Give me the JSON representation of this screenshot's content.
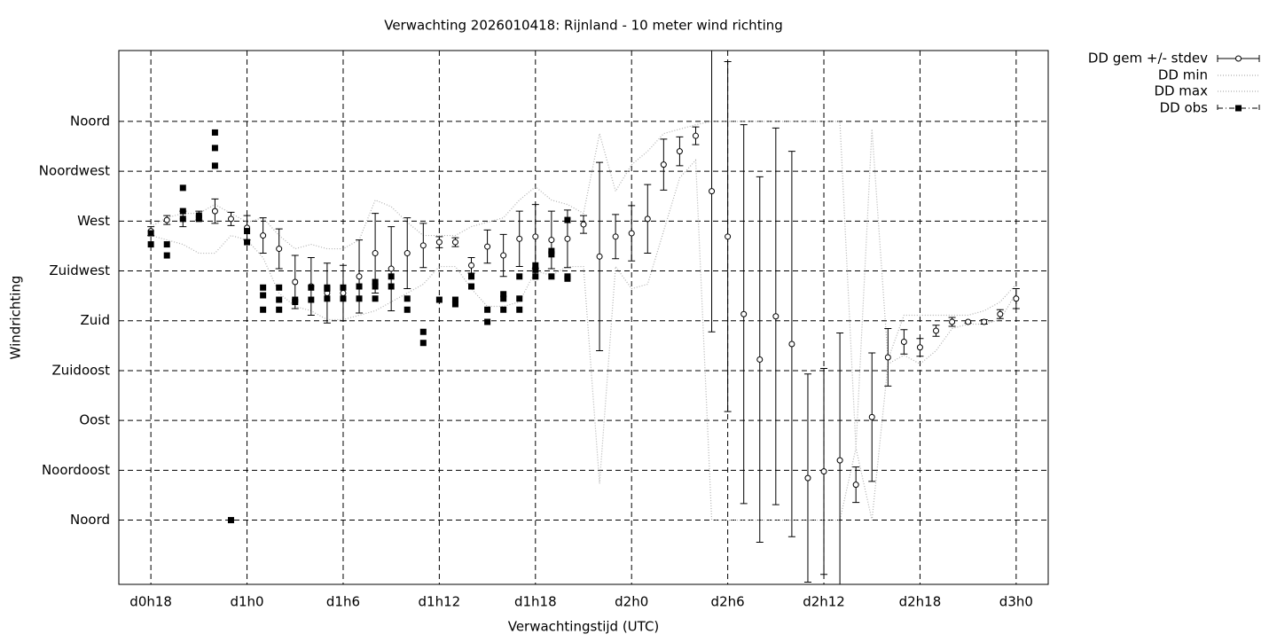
{
  "chart_data": {
    "type": "errorbar",
    "title": "Verwachting 2026010418: Rijnland - 10 meter wind richting",
    "xlabel": "Verwachtingstijd (UTC)",
    "ylabel": "Windrichting",
    "xlim": [
      16,
      74
    ],
    "xticks": [
      {
        "value": 18,
        "label": "d0h18"
      },
      {
        "value": 24,
        "label": "d1h0"
      },
      {
        "value": 30,
        "label": "d1h6"
      },
      {
        "value": 36,
        "label": "d1h12"
      },
      {
        "value": 42,
        "label": "d1h18"
      },
      {
        "value": 48,
        "label": "d2h0"
      },
      {
        "value": 54,
        "label": "d2h6"
      },
      {
        "value": 60,
        "label": "d2h12"
      },
      {
        "value": 66,
        "label": "d2h18"
      },
      {
        "value": 72,
        "label": "d3h0"
      }
    ],
    "ylim": [
      -58,
      424
    ],
    "yticks": [
      {
        "value": 0,
        "label": "Noord"
      },
      {
        "value": 45,
        "label": "Noordoost"
      },
      {
        "value": 90,
        "label": "Oost"
      },
      {
        "value": 135,
        "label": "Zuidoost"
      },
      {
        "value": 180,
        "label": "Zuid"
      },
      {
        "value": 225,
        "label": "Zuidwest"
      },
      {
        "value": 270,
        "label": "West"
      },
      {
        "value": 315,
        "label": "Noordwest"
      },
      {
        "value": 360,
        "label": "Noord"
      }
    ],
    "grid": true,
    "x": [
      18,
      19,
      20,
      21,
      22,
      23,
      24,
      25,
      26,
      27,
      28,
      29,
      30,
      31,
      32,
      33,
      34,
      35,
      36,
      37,
      38,
      39,
      40,
      41,
      42,
      43,
      44,
      45,
      46,
      47,
      48,
      49,
      50,
      51,
      52,
      53,
      54,
      55,
      56,
      57,
      58,
      59,
      60,
      61,
      62,
      63,
      64,
      65,
      66,
      67,
      68,
      69,
      70,
      71,
      72
    ],
    "series": [
      {
        "name": "DD gem +/- stdev",
        "color": "#000000",
        "values": [
          261,
          271,
          272,
          275,
          279,
          272,
          264,
          257,
          245,
          215,
          211,
          205,
          205,
          220,
          241,
          227,
          241,
          248,
          251,
          251,
          230,
          247,
          239,
          254,
          256,
          253,
          254,
          267,
          238,
          256,
          259,
          272,
          321,
          333,
          347,
          297,
          256,
          186,
          145,
          184,
          159,
          38,
          44,
          54,
          32,
          93,
          147,
          161,
          156,
          171,
          179,
          179,
          179,
          186,
          200
        ],
        "errors": [
          4,
          4,
          7,
          4,
          11,
          6,
          11,
          16,
          18,
          24,
          26,
          27,
          25,
          33,
          36,
          38,
          32,
          20,
          5,
          4,
          7,
          15,
          19,
          25,
          29,
          26,
          26,
          8,
          85,
          20,
          25,
          31,
          23,
          13,
          8,
          127,
          158,
          171,
          165,
          170,
          174,
          94,
          93,
          115,
          16,
          58,
          26,
          11,
          8,
          5,
          4,
          1,
          2,
          4,
          9
        ]
      },
      {
        "name": "DD min",
        "color": "#b0b0b0",
        "values": [
          257,
          253,
          249,
          241,
          241,
          257,
          253,
          237,
          205,
          193,
          189,
          181,
          181,
          185,
          189,
          197,
          205,
          213,
          229,
          229,
          209,
          193,
          193,
          197,
          225,
          221,
          229,
          229,
          33,
          229,
          209,
          213,
          261,
          309,
          325,
          0,
          0,
          0,
          0,
          0,
          0,
          0,
          0,
          0,
          65,
          0,
          141,
          149,
          141,
          153,
          173,
          177,
          177,
          181,
          205
        ]
      },
      {
        "name": "DD max",
        "color": "#b0b0b0",
        "values": [
          265,
          273,
          277,
          277,
          285,
          277,
          269,
          273,
          257,
          245,
          249,
          245,
          245,
          253,
          289,
          283,
          269,
          257,
          257,
          257,
          265,
          269,
          273,
          289,
          301,
          289,
          285,
          277,
          349,
          297,
          321,
          333,
          349,
          353,
          357,
          360,
          360,
          360,
          360,
          360,
          360,
          360,
          360,
          360,
          65,
          353,
          145,
          185,
          185,
          185,
          185,
          185,
          189,
          197,
          213
        ]
      },
      {
        "name": "DD obs",
        "color": "#000000",
        "x": [
          18,
          18,
          19,
          19,
          20,
          20,
          20,
          21,
          21,
          22,
          22,
          22,
          23,
          24,
          24,
          25,
          25,
          25,
          26,
          26,
          26,
          27,
          27,
          28,
          28,
          29,
          29,
          29,
          30,
          30,
          31,
          31,
          32,
          32,
          32,
          33,
          33,
          34,
          34,
          35,
          35,
          36,
          37,
          37,
          38,
          38,
          39,
          39,
          40,
          40,
          40,
          41,
          41,
          41,
          42,
          42,
          42,
          43,
          43,
          43,
          44,
          44,
          44
        ],
        "values": [
          259,
          249,
          249,
          239,
          300,
          279,
          272,
          275,
          272,
          350,
          336,
          320,
          0,
          261,
          251,
          210,
          203,
          190,
          210,
          199,
          190,
          199,
          197,
          210,
          199,
          210,
          209,
          200,
          210,
          200,
          211,
          200,
          215,
          211,
          200,
          220,
          211,
          200,
          190,
          170,
          160,
          199,
          199,
          195,
          220,
          211,
          190,
          179,
          204,
          200,
          190,
          220,
          200,
          190,
          230,
          226,
          220,
          243,
          240,
          220,
          271,
          220,
          218
        ]
      }
    ]
  }
}
